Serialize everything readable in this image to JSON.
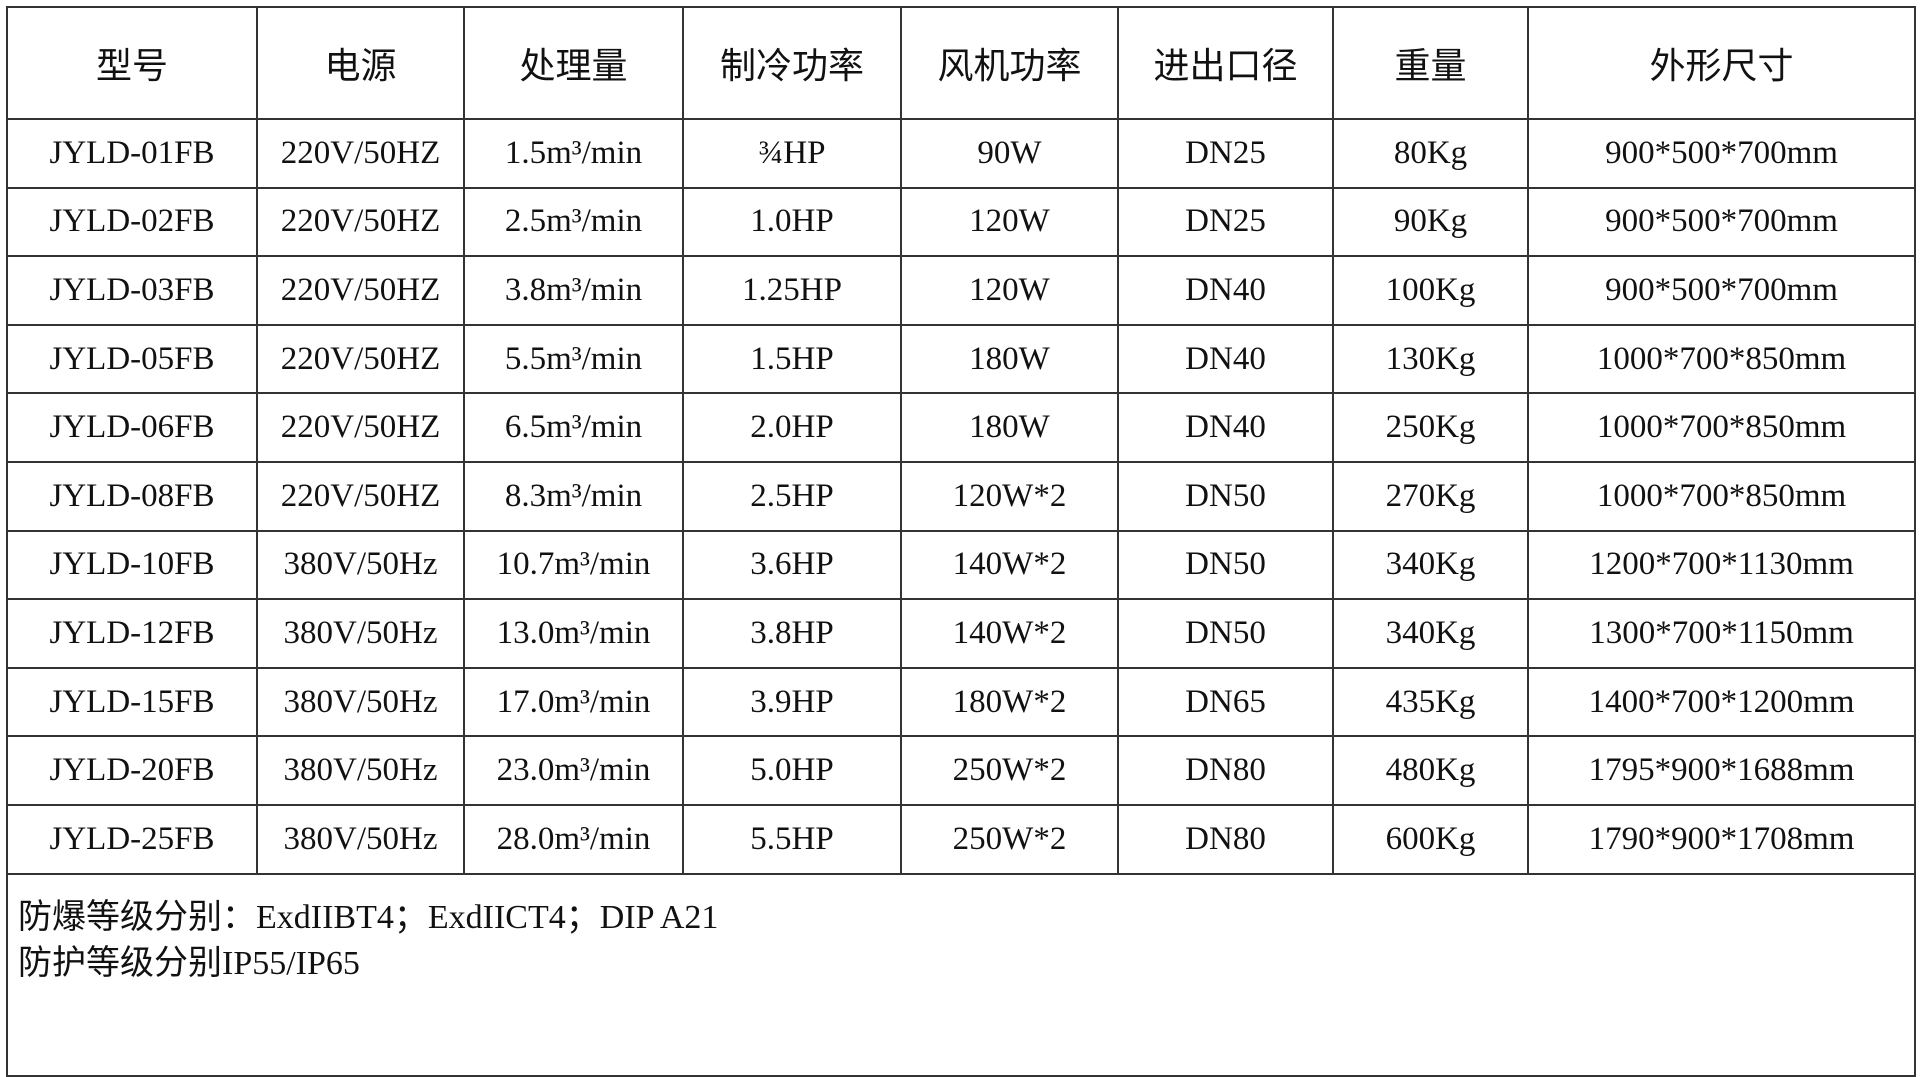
{
  "table": {
    "headers": [
      "型号",
      "电源",
      "处理量",
      "制冷功率",
      "风机功率",
      "进出口径",
      "重量",
      "外形尺寸"
    ],
    "rows": [
      [
        "JYLD-01FB",
        "220V/50HZ",
        "1.5m³/min",
        "¾HP",
        "90W",
        "DN25",
        "80Kg",
        "900*500*700mm"
      ],
      [
        "JYLD-02FB",
        "220V/50HZ",
        "2.5m³/min",
        "1.0HP",
        "120W",
        "DN25",
        "90Kg",
        "900*500*700mm"
      ],
      [
        "JYLD-03FB",
        "220V/50HZ",
        "3.8m³/min",
        "1.25HP",
        "120W",
        "DN40",
        "100Kg",
        "900*500*700mm"
      ],
      [
        "JYLD-05FB",
        "220V/50HZ",
        "5.5m³/min",
        "1.5HP",
        "180W",
        "DN40",
        "130Kg",
        "1000*700*850mm"
      ],
      [
        "JYLD-06FB",
        "220V/50HZ",
        "6.5m³/min",
        "2.0HP",
        "180W",
        "DN40",
        "250Kg",
        "1000*700*850mm"
      ],
      [
        "JYLD-08FB",
        "220V/50HZ",
        "8.3m³/min",
        "2.5HP",
        "120W*2",
        "DN50",
        "270Kg",
        "1000*700*850mm"
      ],
      [
        "JYLD-10FB",
        "380V/50Hz",
        "10.7m³/min",
        "3.6HP",
        "140W*2",
        "DN50",
        "340Kg",
        "1200*700*1130mm"
      ],
      [
        "JYLD-12FB",
        "380V/50Hz",
        "13.0m³/min",
        "3.8HP",
        "140W*2",
        "DN50",
        "340Kg",
        "1300*700*1150mm"
      ],
      [
        "JYLD-15FB",
        "380V/50Hz",
        "17.0m³/min",
        "3.9HP",
        "180W*2",
        "DN65",
        "435Kg",
        "1400*700*1200mm"
      ],
      [
        "JYLD-20FB",
        "380V/50Hz",
        "23.0m³/min",
        "5.0HP",
        "250W*2",
        "DN80",
        "480Kg",
        "1795*900*1688mm"
      ],
      [
        "JYLD-25FB",
        "380V/50Hz",
        "28.0m³/min",
        "5.5HP",
        "250W*2",
        "DN80",
        "600Kg",
        "1790*900*1708mm"
      ]
    ],
    "notes": [
      "防爆等级分别：ExdIIBT4；ExdIICT4；DIP A21",
      "防护等级分别IP55/IP65"
    ]
  }
}
